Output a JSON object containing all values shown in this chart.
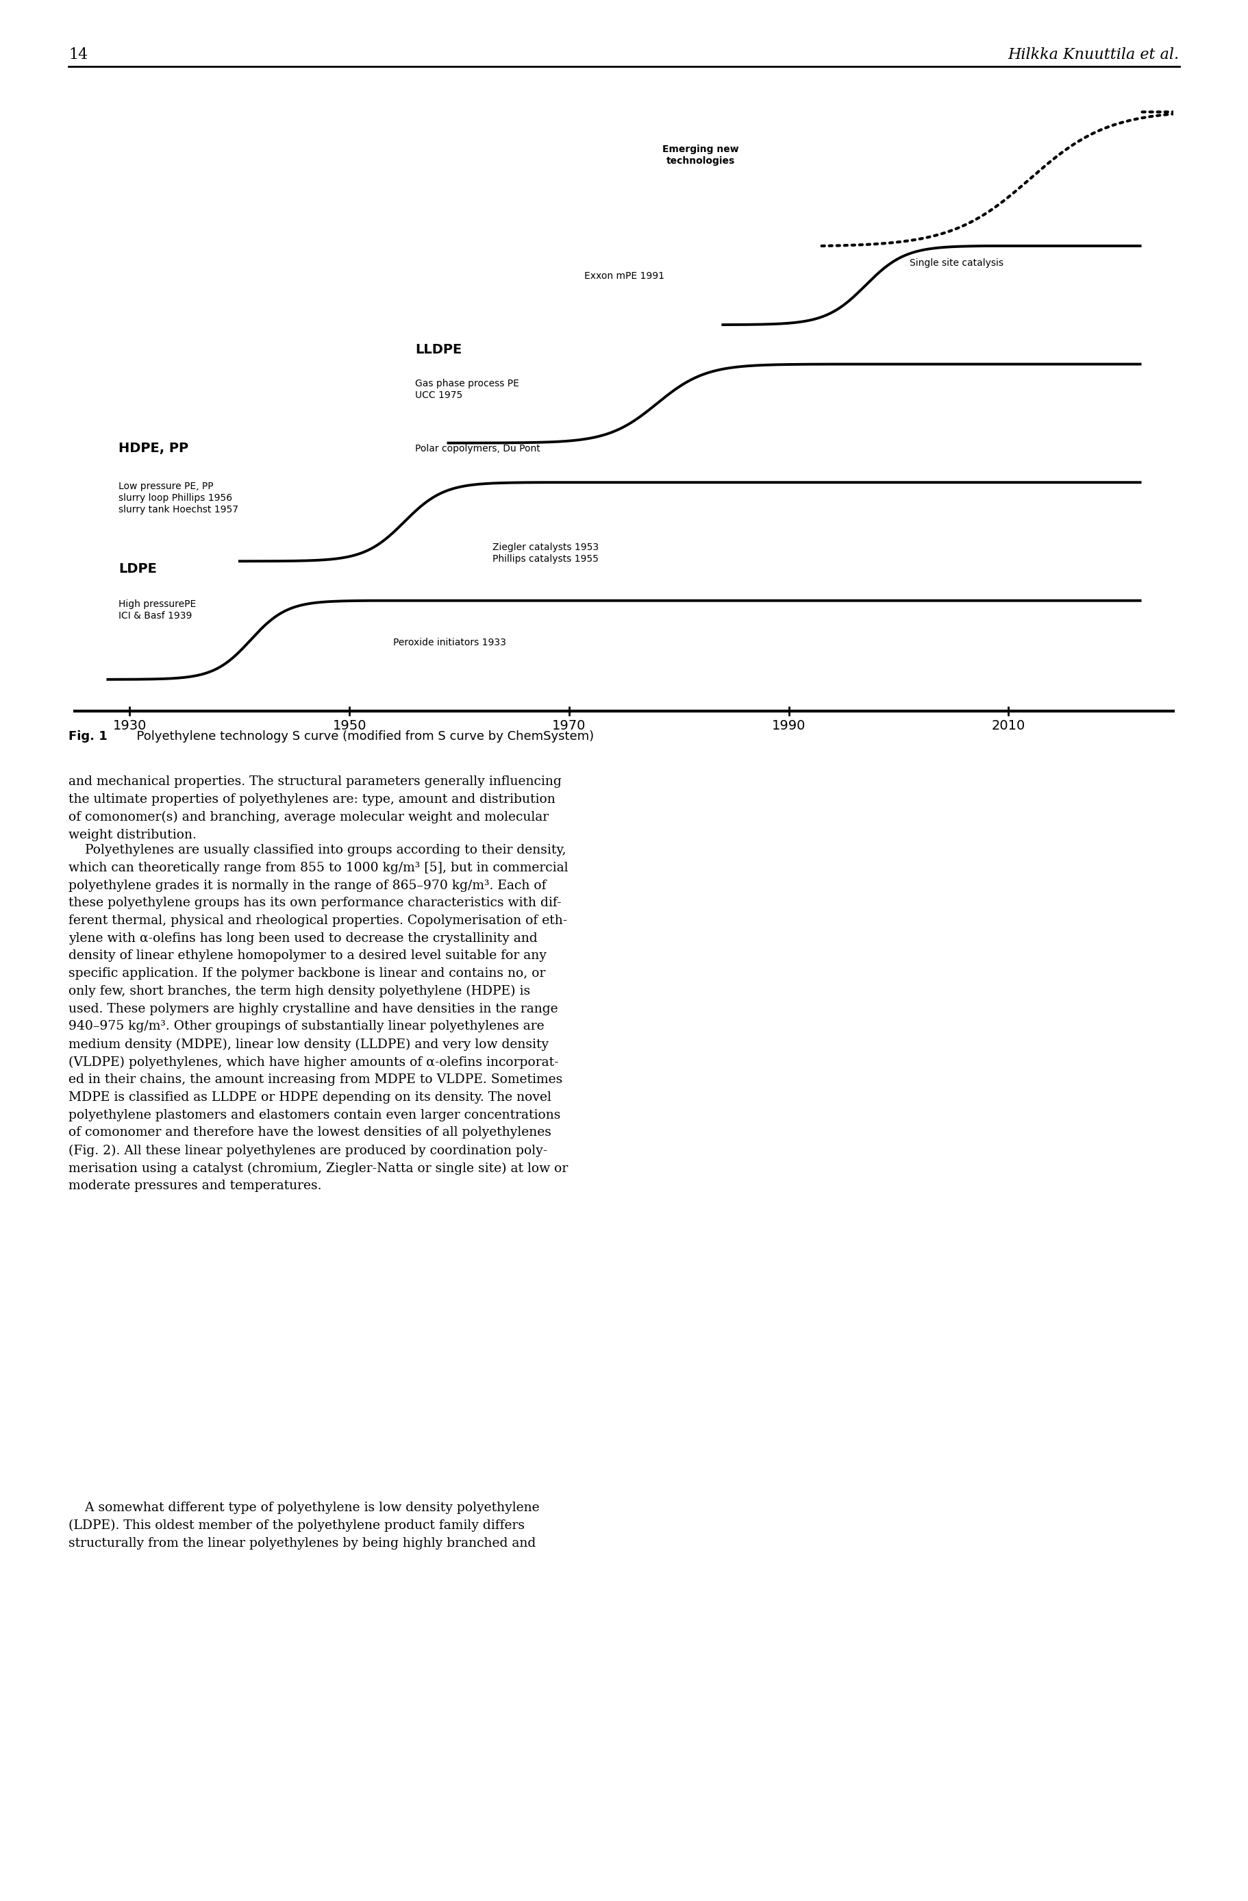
{
  "page_number": "14",
  "header_right": "Hilkka Knuuttila et al.",
  "fig_caption_bold": "Fig. 1",
  "fig_caption_rest": "  Polyethylene technology S curve (modified from S curve by ChemSystem)",
  "background_color": "#ffffff",
  "xlim": [
    1925,
    2025
  ],
  "xticks": [
    1930,
    1950,
    1970,
    1990,
    2010
  ],
  "body_text1": "and mechanical properties. The structural parameters generally influencing\nthe ultimate properties of polyethylenes are: type, amount and distribution\nof comonomer(s) and branching, average molecular weight and molecular\nweight distribution.",
  "body_text2_indent": "    Polyethylenes are usually classified into groups according to their density,\nwhich can theoretically range from 855 to 1000 kg/m³ [5], but in commercial\npolyethylene grades it is normally in the range of 865–970 kg/m³. Each of\nthese polyethylene groups has its own performance characteristics with dif-\nferent thermal, physical and rheological properties. Copolymerisation of eth-\nylene with α-olefins has long been used to decrease the crystallinity and\ndensity of linear ethylene homopolymer to a desired level suitable for any\nspecific application. If the polymer backbone is linear and contains no, or\nonly few, short branches, the term high density polyethylene (HDPE) is\nused. These polymers are highly crystalline and have densities in the range\n940–975 kg/m³. Other groupings of substantially linear polyethylenes are\nmedium density (MDPE), linear low density (LLDPE) and very low density\n(VLDPE) polyethylenes, which have higher amounts of α-olefins incorporat-\ned in their chains, the amount increasing from MDPE to VLDPE. Sometimes\nMDPE is classified as LLDPE or HDPE depending on its density. The novel\npolyethylene plastomers and elastomers contain even larger concentrations\nof comonomer and therefore have the lowest densities of all polyethylenes\n(Fig. 2). All these linear polyethylenes are produced by coordination poly-\nmerisation using a catalyst (chromium, Ziegler-Natta or single site) at low or\nmoderate pressures and temperatures.",
  "body_text3_indent": "    A somewhat different type of polyethylene is low density polyethylene\n(LDPE). This oldest member of the polyethylene product family differs\nstructurally from the linear polyethylenes by being highly branched and"
}
